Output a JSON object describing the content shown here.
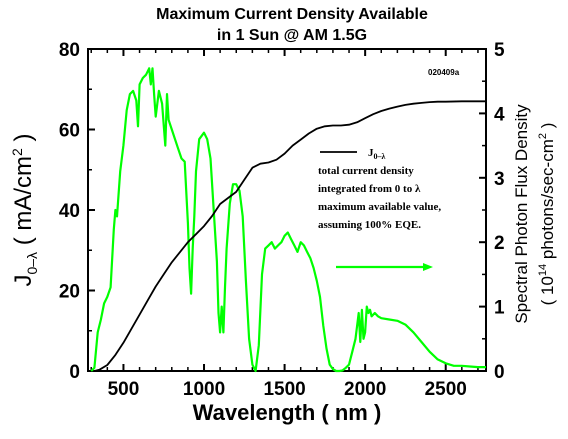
{
  "chart_data": {
    "type": "line",
    "title_line1": "Maximum Current Density Available",
    "title_line2": "in 1 Sun @ AM 1.5G",
    "code": "020409a",
    "xlabel": "Wavelength ( nm )",
    "ylabel_left_main": "J",
    "ylabel_left_sub": "0–λ",
    "ylabel_left_unit": " ( mA/cm",
    "ylabel_left_sup": "2",
    "ylabel_left_close": " )",
    "ylabel_right_line1": "Spectral Photon Flux Density",
    "ylabel_right_line2_a": "( 10",
    "ylabel_right_line2_sup": "14",
    "ylabel_right_line2_b": " photons/sec-cm",
    "ylabel_right_line2_sup2": "2",
    "ylabel_right_line2_c": " )",
    "xlim": [
      280,
      2750
    ],
    "ylim_left": [
      0,
      80
    ],
    "ylim_right": [
      0,
      5
    ],
    "x_ticks": [
      500,
      1000,
      1500,
      2000,
      2500
    ],
    "x_tick_labels": [
      "500",
      "1000",
      "1500",
      "2000",
      "2500"
    ],
    "y_left_ticks": [
      0,
      20,
      40,
      60,
      80
    ],
    "y_left_tick_labels": [
      "0",
      "20",
      "40",
      "60",
      "80"
    ],
    "y_right_ticks": [
      0,
      1,
      2,
      3,
      4,
      5
    ],
    "y_right_tick_labels": [
      "0",
      "1",
      "2",
      "3",
      "4",
      "5"
    ],
    "legend": {
      "symbol_main": "J",
      "symbol_sub": "0–λ",
      "lines": [
        "total current density",
        "integrated from 0 to λ",
        "maximum available value,",
        "assuming 100% EQE."
      ]
    },
    "series": [
      {
        "axis": "left",
        "color": "#000000",
        "x": [
          320,
          350,
          400,
          450,
          500,
          550,
          600,
          650,
          700,
          750,
          800,
          850,
          900,
          950,
          1000,
          1050,
          1100,
          1150,
          1200,
          1250,
          1300,
          1350,
          1400,
          1450,
          1500,
          1550,
          1600,
          1650,
          1700,
          1750,
          1800,
          1850,
          1900,
          1950,
          2000,
          2050,
          2100,
          2150,
          2200,
          2250,
          2300,
          2350,
          2400,
          2450,
          2500,
          2600,
          2750
        ],
        "y": [
          0,
          0.3,
          1.5,
          4,
          7,
          10.5,
          14,
          17.5,
          21,
          24,
          27,
          29.5,
          32,
          34,
          36,
          38.5,
          41.5,
          43,
          44.5,
          47.5,
          50.5,
          51.5,
          51.8,
          52.5,
          54,
          56,
          57.5,
          59,
          60.2,
          60.8,
          61,
          61,
          61.2,
          61.8,
          62.8,
          63.8,
          64.6,
          65.2,
          65.7,
          66.1,
          66.4,
          66.6,
          66.8,
          66.9,
          66.9,
          67,
          67
        ]
      },
      {
        "axis": "right",
        "color": "#00ff00",
        "x": [
          300,
          320,
          340,
          360,
          380,
          400,
          420,
          440,
          450,
          460,
          480,
          500,
          520,
          540,
          560,
          580,
          590,
          600,
          620,
          640,
          660,
          670,
          680,
          690,
          700,
          720,
          740,
          760,
          770,
          780,
          800,
          820,
          840,
          860,
          880,
          900,
          910,
          920,
          930,
          940,
          950,
          970,
          1000,
          1020,
          1040,
          1060,
          1080,
          1090,
          1100,
          1110,
          1120,
          1130,
          1140,
          1160,
          1180,
          1200,
          1220,
          1240,
          1260,
          1280,
          1300,
          1320,
          1340,
          1360,
          1380,
          1400,
          1420,
          1440,
          1460,
          1480,
          1500,
          1520,
          1540,
          1560,
          1580,
          1600,
          1620,
          1640,
          1660,
          1680,
          1700,
          1720,
          1740,
          1760,
          1780,
          1800,
          1820,
          1840,
          1860,
          1880,
          1900,
          1920,
          1940,
          1960,
          1970,
          1980,
          1990,
          2000,
          2010,
          2020,
          2030,
          2040,
          2060,
          2080,
          2100,
          2150,
          2200,
          2250,
          2300,
          2350,
          2400,
          2450,
          2500,
          2550,
          2600,
          2650,
          2700,
          2750
        ],
        "y": [
          0,
          0.05,
          0.6,
          0.8,
          1.05,
          1.15,
          1.3,
          2.2,
          2.5,
          2.4,
          3.1,
          3.5,
          4.05,
          4.3,
          4.35,
          4.2,
          3.8,
          4.45,
          4.55,
          4.6,
          4.7,
          4.45,
          4.7,
          4.3,
          3.95,
          4.35,
          4.15,
          3.5,
          4.3,
          3.9,
          3.75,
          3.6,
          3.45,
          3.3,
          3.25,
          2.3,
          1.6,
          1.2,
          1.9,
          2.4,
          3.1,
          3.6,
          3.7,
          3.6,
          3.3,
          2.5,
          1.7,
          0.9,
          0.6,
          1.0,
          0.6,
          1.3,
          1.9,
          2.6,
          2.9,
          2.9,
          2.8,
          2.4,
          1.4,
          0.5,
          0.1,
          0,
          0.4,
          1.5,
          1.9,
          1.95,
          2.0,
          1.9,
          1.95,
          2.0,
          2.1,
          2.15,
          2.05,
          1.95,
          1.85,
          2.0,
          1.95,
          1.85,
          1.75,
          1.6,
          1.4,
          1.15,
          0.7,
          0.35,
          0.1,
          0.03,
          0,
          0,
          0.01,
          0.05,
          0.1,
          0.3,
          0.5,
          0.9,
          0.45,
          0.95,
          0.5,
          0.6,
          1.0,
          0.9,
          0.95,
          0.85,
          0.9,
          0.85,
          0.82,
          0.8,
          0.78,
          0.72,
          0.6,
          0.45,
          0.3,
          0.18,
          0.12,
          0.08,
          0.08,
          0.07,
          0.06,
          0.06
        ]
      }
    ]
  }
}
